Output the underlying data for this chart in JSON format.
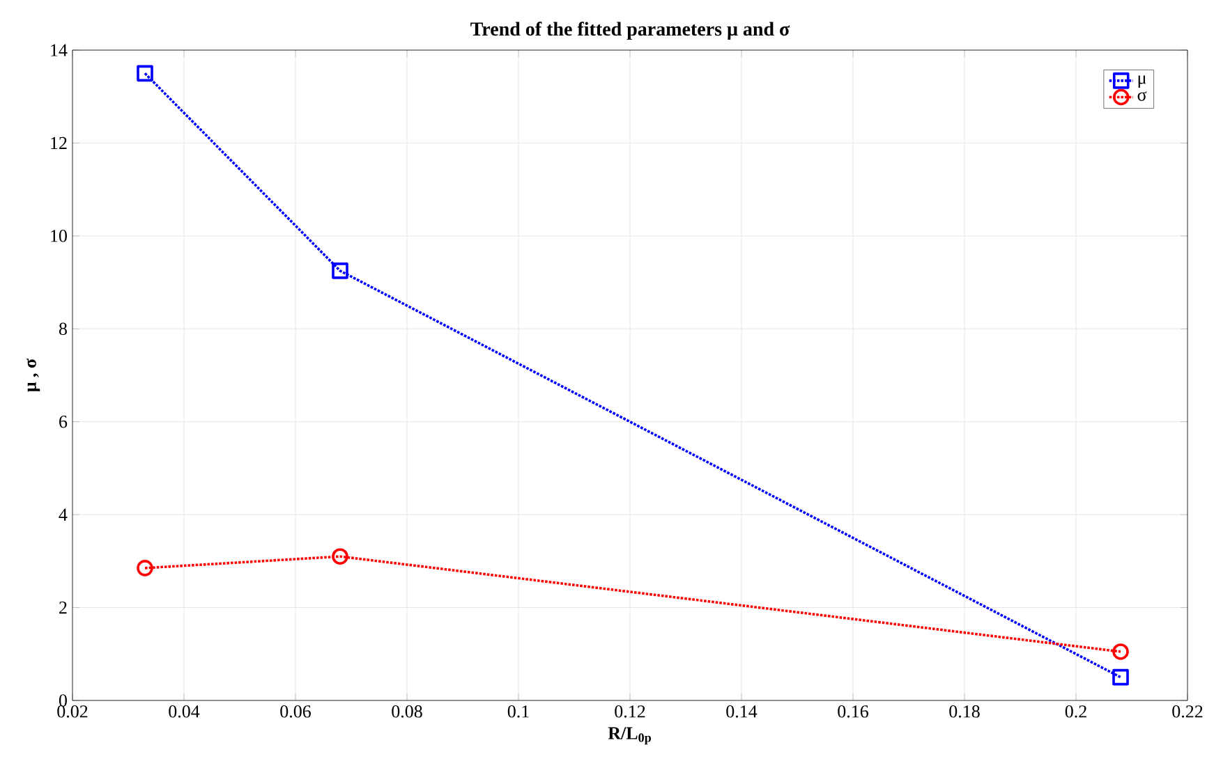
{
  "chart_data": {
    "type": "line",
    "title": "Trend of the fitted parameters μ  and σ",
    "xlabel": "R/L$_{0p}$",
    "ylabel": "μ , σ",
    "x": [
      0.033,
      0.068,
      0.208
    ],
    "series": [
      {
        "name": "μ",
        "color": "#0000ff",
        "marker": "square",
        "line_style": "dotted",
        "values": [
          13.5,
          9.25,
          0.5
        ]
      },
      {
        "name": "σ",
        "color": "#ff0000",
        "marker": "circle",
        "line_style": "dotted",
        "values": [
          2.85,
          3.1,
          1.05
        ]
      }
    ],
    "xlim": [
      0.02,
      0.22
    ],
    "xticks": [
      0.02,
      0.04,
      0.06,
      0.08,
      0.1,
      0.12,
      0.14,
      0.16,
      0.18,
      0.2,
      0.22
    ],
    "ylim": [
      0,
      14
    ],
    "yticks": [
      0,
      2,
      4,
      6,
      8,
      10,
      12,
      14
    ],
    "grid": true,
    "legend": "top right"
  }
}
